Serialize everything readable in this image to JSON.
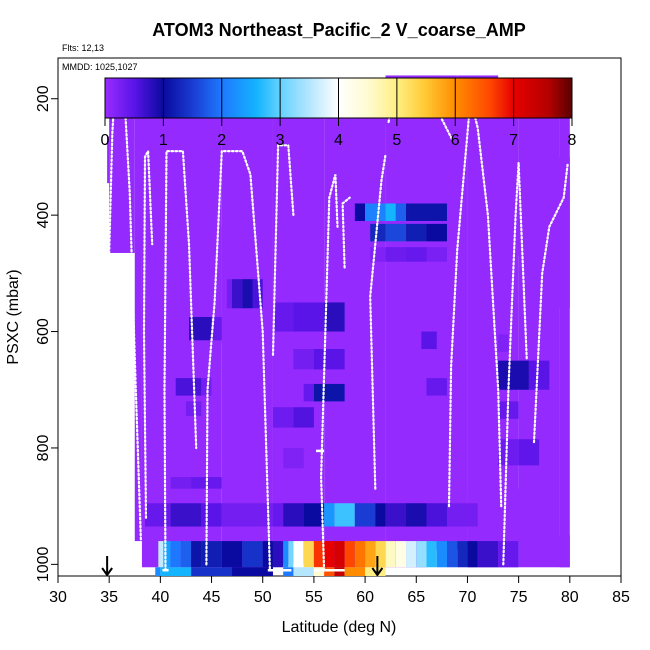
{
  "chart_data": {
    "type": "heatmap",
    "title": "ATOM3 Northeast_Pacific_2 V_coarse_AMP",
    "flights_label": "Flts: 12,13",
    "dates_label": "MMDD: 1025,1027",
    "xlabel": "Latitude (deg N)",
    "ylabel": "PSXC (mbar)",
    "xlim": [
      30,
      85
    ],
    "ylim": [
      1020,
      130
    ],
    "x_ticks": [
      "30",
      "35",
      "40",
      "45",
      "50",
      "55",
      "60",
      "65",
      "70",
      "75",
      "80",
      "85"
    ],
    "y_ticks": [
      "200",
      "400",
      "600",
      "800",
      "1000"
    ],
    "colorbar": {
      "range": [
        0,
        8
      ],
      "ticks": [
        "0",
        "1",
        "2",
        "3",
        "4",
        "5",
        "6",
        "7",
        "8"
      ],
      "stops": [
        {
          "v": 0.0,
          "c": "#9a2cff"
        },
        {
          "v": 0.5,
          "c": "#5a14e8"
        },
        {
          "v": 1.0,
          "c": "#0a0aa0"
        },
        {
          "v": 1.5,
          "c": "#1a3cd2"
        },
        {
          "v": 2.0,
          "c": "#1e78ff"
        },
        {
          "v": 2.6,
          "c": "#14b4ff"
        },
        {
          "v": 3.0,
          "c": "#64d2ff"
        },
        {
          "v": 3.5,
          "c": "#b4e6ff"
        },
        {
          "v": 4.0,
          "c": "#ffffff"
        },
        {
          "v": 4.5,
          "c": "#fffbd2"
        },
        {
          "v": 5.0,
          "c": "#ffef82"
        },
        {
          "v": 5.5,
          "c": "#ffc832"
        },
        {
          "v": 6.0,
          "c": "#ff8c00"
        },
        {
          "v": 6.6,
          "c": "#ff4600"
        },
        {
          "v": 7.0,
          "c": "#e60000"
        },
        {
          "v": 7.6,
          "c": "#b40000"
        },
        {
          "v": 8.0,
          "c": "#5a0000"
        }
      ]
    },
    "cells": [
      [
        35,
        37.5,
        165,
        465,
        0.05
      ],
      [
        37.5,
        38.2,
        165,
        960,
        0.05
      ],
      [
        38.2,
        40.5,
        165,
        1005,
        0.05
      ],
      [
        40.5,
        46,
        165,
        1005,
        0.05
      ],
      [
        46,
        51,
        165,
        1015,
        0.05
      ],
      [
        51,
        56,
        165,
        1000,
        0.05
      ],
      [
        56,
        62,
        165,
        1005,
        0.05
      ],
      [
        62,
        66,
        165,
        1005,
        0.05
      ],
      [
        66,
        70,
        165,
        975,
        0.05
      ],
      [
        70,
        75,
        165,
        1005,
        0.05
      ],
      [
        75,
        79,
        165,
        1005,
        0.05
      ],
      [
        79,
        80,
        165,
        1005,
        0.05
      ],
      [
        34.8,
        35,
        265,
        345,
        0.05
      ],
      [
        38,
        38.5,
        225,
        460,
        0.05
      ],
      [
        38.5,
        41,
        255,
        300,
        0.05
      ],
      [
        45,
        46,
        420,
        620,
        0.05
      ],
      [
        46,
        50,
        170,
        340,
        0.05
      ],
      [
        57,
        60,
        165,
        225,
        0.05
      ],
      [
        60,
        62,
        165,
        245,
        0.05
      ],
      [
        62,
        66,
        160,
        245,
        0.05
      ],
      [
        66,
        69,
        160,
        250,
        0.05
      ],
      [
        69,
        73,
        160,
        300,
        0.05
      ],
      [
        73,
        76,
        310,
        470,
        0.05
      ],
      [
        76,
        80,
        300,
        560,
        0.05
      ],
      [
        79,
        80,
        950,
        1005,
        0.05
      ],
      [
        70,
        78,
        870,
        960,
        0.05
      ],
      [
        44,
        45,
        620,
        780,
        0.05
      ],
      [
        46.5,
        47,
        510,
        560,
        0.3
      ],
      [
        47,
        48,
        510,
        560,
        0.7
      ],
      [
        48,
        49,
        510,
        560,
        0.9
      ],
      [
        49,
        50,
        510,
        560,
        0.6
      ],
      [
        59,
        60,
        380,
        410,
        1.0
      ],
      [
        60,
        62,
        380,
        410,
        2.1
      ],
      [
        62,
        63,
        380,
        410,
        2.6
      ],
      [
        63,
        64,
        380,
        410,
        1.8
      ],
      [
        64,
        68,
        380,
        410,
        1.1
      ],
      [
        60.5,
        62,
        415,
        445,
        1.3
      ],
      [
        62,
        64,
        415,
        445,
        1.6
      ],
      [
        64,
        66,
        415,
        445,
        1.2
      ],
      [
        66,
        68,
        415,
        445,
        1.0
      ],
      [
        60.5,
        62,
        455,
        480,
        0.2
      ],
      [
        62,
        64,
        455,
        480,
        0.35
      ],
      [
        64,
        66,
        455,
        480,
        0.4
      ],
      [
        66,
        68,
        455,
        480,
        0.25
      ],
      [
        51,
        53,
        550,
        600,
        0.4
      ],
      [
        53,
        56,
        550,
        600,
        0.5
      ],
      [
        56,
        58,
        550,
        600,
        0.8
      ],
      [
        53,
        55,
        630,
        665,
        0.3
      ],
      [
        55,
        58,
        630,
        665,
        0.5
      ],
      [
        54,
        55,
        690,
        720,
        0.4
      ],
      [
        55,
        58,
        690,
        720,
        1.1
      ],
      [
        51,
        53,
        730,
        765,
        0.35
      ],
      [
        53,
        55,
        730,
        765,
        0.55
      ],
      [
        52,
        54,
        800,
        835,
        0.2
      ],
      [
        41,
        43,
        850,
        870,
        0.3
      ],
      [
        43,
        46,
        850,
        870,
        0.4
      ],
      [
        42.8,
        45,
        575,
        615,
        0.8
      ],
      [
        45,
        46,
        575,
        615,
        0.4
      ],
      [
        41.5,
        44,
        680,
        710,
        0.6
      ],
      [
        44,
        45,
        680,
        710,
        0.3
      ],
      [
        42.5,
        44,
        720,
        745,
        0.3
      ],
      [
        65.5,
        67,
        600,
        630,
        0.5
      ],
      [
        66,
        68,
        680,
        710,
        0.4
      ],
      [
        73,
        74,
        605,
        635,
        0.2
      ],
      [
        73,
        76,
        650,
        700,
        0.9
      ],
      [
        76,
        78,
        650,
        700,
        0.5
      ],
      [
        73,
        75,
        720,
        750,
        0.4
      ],
      [
        73,
        75,
        785,
        830,
        0.35
      ],
      [
        75,
        77,
        785,
        830,
        0.45
      ],
      [
        38.5,
        41,
        895,
        935,
        0.4
      ],
      [
        41,
        44,
        895,
        935,
        0.7
      ],
      [
        44,
        46,
        895,
        935,
        0.5
      ],
      [
        46,
        50,
        895,
        935,
        0.3
      ],
      [
        50,
        51,
        895,
        935,
        0.3
      ],
      [
        51,
        52,
        895,
        935,
        0.4
      ],
      [
        52,
        54,
        895,
        935,
        0.8
      ],
      [
        54,
        56,
        895,
        935,
        1.0
      ],
      [
        56,
        57,
        895,
        935,
        2.3
      ],
      [
        57,
        59,
        895,
        935,
        2.8
      ],
      [
        59,
        61,
        895,
        935,
        1.5
      ],
      [
        61,
        62,
        895,
        935,
        1.0
      ],
      [
        62,
        64,
        895,
        935,
        0.7
      ],
      [
        64,
        66,
        895,
        935,
        0.9
      ],
      [
        66,
        68,
        895,
        935,
        0.6
      ],
      [
        68,
        71,
        895,
        935,
        0.3
      ],
      [
        39.8,
        40.3,
        960,
        1005,
        3.6
      ],
      [
        40.3,
        41,
        960,
        1005,
        2.4
      ],
      [
        41,
        42,
        960,
        1005,
        2.0
      ],
      [
        42,
        43,
        960,
        1005,
        1.8
      ],
      [
        43,
        44,
        960,
        1005,
        1.1
      ],
      [
        44,
        46,
        960,
        1005,
        1.2
      ],
      [
        46,
        48,
        960,
        1005,
        1.0
      ],
      [
        48,
        50,
        960,
        1005,
        1.4
      ],
      [
        50,
        51,
        960,
        1005,
        1.0
      ],
      [
        51,
        52,
        960,
        1005,
        0.8
      ],
      [
        52,
        52.5,
        960,
        1005,
        2.2
      ],
      [
        52.5,
        53,
        960,
        1005,
        3.1
      ],
      [
        53,
        54,
        960,
        1005,
        4.0
      ],
      [
        54,
        55,
        960,
        1005,
        5.3
      ],
      [
        55,
        56,
        960,
        1005,
        6.7
      ],
      [
        56,
        57,
        960,
        1005,
        7.0
      ],
      [
        57,
        58,
        960,
        1005,
        7.2
      ],
      [
        58,
        59,
        960,
        1005,
        6.6
      ],
      [
        59,
        60,
        960,
        1005,
        6.2
      ],
      [
        60,
        61,
        960,
        1005,
        5.8
      ],
      [
        61,
        62,
        960,
        1005,
        5.3
      ],
      [
        62,
        63,
        960,
        1005,
        4.6
      ],
      [
        63,
        64,
        960,
        1005,
        4.3
      ],
      [
        64,
        65,
        960,
        1005,
        3.7
      ],
      [
        65,
        66,
        960,
        1005,
        3.3
      ],
      [
        66,
        67,
        960,
        1005,
        2.7
      ],
      [
        67,
        68,
        960,
        1005,
        2.2
      ],
      [
        68,
        69,
        960,
        1005,
        1.7
      ],
      [
        69,
        70,
        960,
        1005,
        1.3
      ],
      [
        70,
        71,
        960,
        1005,
        1.0
      ],
      [
        71,
        73,
        960,
        1005,
        0.7
      ],
      [
        73,
        75,
        960,
        1005,
        0.4
      ],
      [
        39.5,
        40,
        1005,
        1020,
        2.2
      ],
      [
        40,
        43,
        1005,
        1020,
        2.6
      ],
      [
        43,
        47,
        1005,
        1020,
        1.4
      ],
      [
        47,
        51,
        1005,
        1020,
        1.0
      ],
      [
        52,
        53,
        1005,
        1020,
        2.0
      ],
      [
        53,
        55,
        1005,
        1020,
        3.5
      ],
      [
        55,
        56,
        1005,
        1020,
        4.5
      ],
      [
        56,
        57,
        1005,
        1020,
        6.5
      ],
      [
        57,
        58,
        1005,
        1020,
        7.4
      ],
      [
        58,
        60,
        1005,
        1020,
        6.0
      ],
      [
        60,
        62,
        1005,
        1020,
        5.0
      ]
    ],
    "tracks": [
      [
        [
          35,
          465
        ],
        [
          35.3,
          260
        ],
        [
          35.5,
          200
        ],
        [
          36.5,
          200
        ],
        [
          37,
          360
        ],
        [
          37.6,
          700
        ],
        [
          38.1,
          960
        ]
      ],
      [
        [
          38.6,
          920
        ],
        [
          38.4,
          600
        ],
        [
          38.5,
          300
        ],
        [
          38.8,
          290
        ],
        [
          39.2,
          450
        ]
      ],
      [
        [
          40.5,
          1010
        ],
        [
          40.4,
          700
        ],
        [
          40.6,
          290
        ],
        [
          42.2,
          290
        ],
        [
          42.8,
          450
        ],
        [
          43.5,
          800
        ]
      ],
      [
        [
          44.5,
          1000
        ],
        [
          44.6,
          700
        ],
        [
          45.3,
          550
        ],
        [
          46,
          290
        ],
        [
          48,
          290
        ],
        [
          48.8,
          330
        ],
        [
          50,
          600
        ],
        [
          50.7,
          1010
        ]
      ],
      [
        [
          51,
          640
        ],
        [
          51.5,
          280
        ],
        [
          52.5,
          280
        ],
        [
          53,
          400
        ]
      ],
      [
        [
          56,
          1010
        ],
        [
          55.7,
          850
        ],
        [
          56.5,
          370
        ],
        [
          57.1,
          330
        ],
        [
          57.3,
          420
        ]
      ],
      [
        [
          58,
          490
        ],
        [
          57.8,
          380
        ],
        [
          58.5,
          370
        ]
      ],
      [
        [
          61,
          870
        ],
        [
          60.5,
          540
        ],
        [
          61.6,
          340
        ],
        [
          62,
          295
        ]
      ],
      [
        [
          62.3,
          240
        ],
        [
          62.8,
          180
        ],
        [
          65,
          180
        ],
        [
          66.5,
          200
        ],
        [
          68.5,
          270
        ]
      ],
      [
        [
          68.2,
          900
        ],
        [
          68.4,
          660
        ],
        [
          69,
          460
        ],
        [
          70.3,
          200
        ],
        [
          71,
          250
        ],
        [
          72,
          400
        ],
        [
          73,
          700
        ],
        [
          73.3,
          900
        ]
      ],
      [
        [
          73.5,
          1000
        ],
        [
          74,
          700
        ],
        [
          74.7,
          400
        ],
        [
          75,
          310
        ],
        [
          75.8,
          650
        ]
      ],
      [
        [
          76.5,
          790
        ],
        [
          77.3,
          500
        ],
        [
          78,
          420
        ],
        [
          79.4,
          370
        ],
        [
          79.8,
          310
        ]
      ]
    ],
    "flat_segments": [
      [
        [
          55.2,
          805
        ],
        [
          56,
          805
        ]
      ],
      [
        [
          50.5,
          1010
        ],
        [
          52.8,
          1010
        ]
      ],
      [
        [
          55,
          1010
        ],
        [
          58,
          1010
        ]
      ],
      [
        [
          40.2,
          1010
        ],
        [
          40.8,
          1010
        ]
      ]
    ],
    "markers": [
      {
        "x": 34.8,
        "label": "sounding-start"
      },
      {
        "x": 61.2,
        "label": "sounding-end"
      }
    ]
  }
}
